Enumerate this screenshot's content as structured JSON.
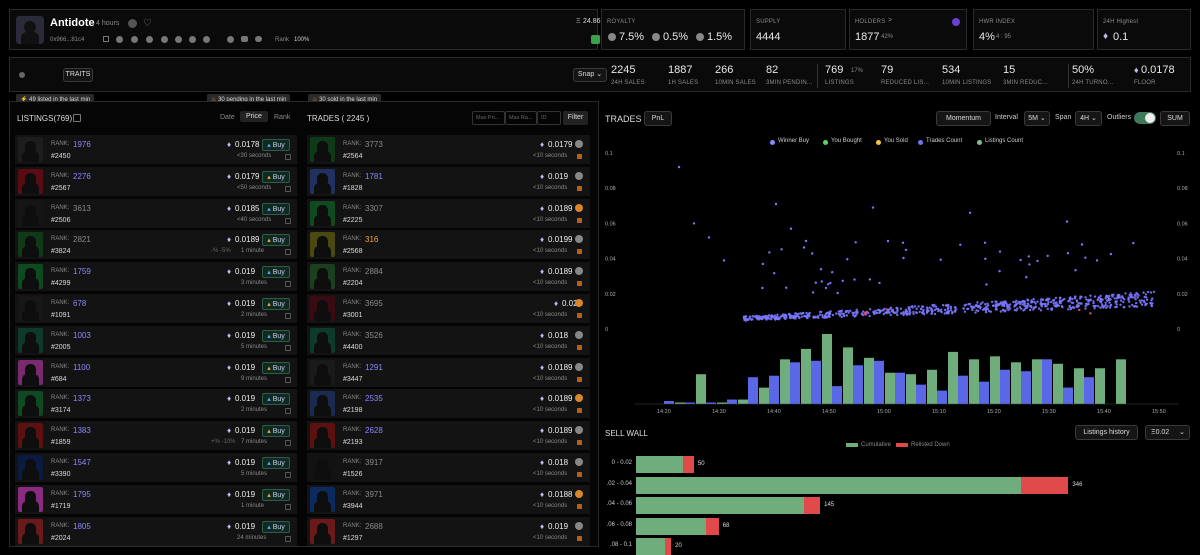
{
  "collection": {
    "name": "Antidote",
    "age": "4 hours",
    "address": "0x966...81c4",
    "rank_label": "Rank",
    "rank_value": "100%",
    "floor_small": "24.86"
  },
  "stats_top": {
    "royalty": {
      "label": "ROYALTY",
      "v1": "7.5%",
      "v2": "0.5%",
      "v3": "1.5%"
    },
    "supply": {
      "label": "SUPPLY",
      "value": "4444"
    },
    "holders": {
      "label": "HOLDERS",
      "value": "1877",
      "pct": "42%"
    },
    "hwr": {
      "label": "HWR INDEX",
      "value": "4%",
      "sub": "4 : 95"
    },
    "high24": {
      "label": "24H Highest",
      "value": "0.1"
    }
  },
  "traits_btn": "TRAITS",
  "snap_select": "Snap",
  "stats_bar": [
    {
      "value": "2245",
      "label": "24H SALES"
    },
    {
      "value": "1887",
      "label": "1H SALES"
    },
    {
      "value": "266",
      "label": "10MIN SALES"
    },
    {
      "value": "82",
      "label": "3MIN PENDIN..."
    },
    {
      "value": "769",
      "sub": "17%",
      "label": "LISTINGS"
    },
    {
      "value": "79",
      "label": "REDUCED LIS..."
    },
    {
      "value": "534",
      "label": "10MIN LISTINGS"
    },
    {
      "value": "15",
      "label": "3MIN REDUC..."
    },
    {
      "value": "50%",
      "label": "24H TURNO..."
    },
    {
      "value": "0.0178",
      "label": "FLOOR"
    }
  ],
  "badges": {
    "listed": "49 listed in the last min",
    "pending": "30 pending in the last min",
    "sold": "30 sold in the last min"
  },
  "listings": {
    "title": "LISTINGS(769)",
    "sort_date": "Date",
    "sort_price": "Price",
    "sort_rank": "Rank",
    "rank_label": "RANK:",
    "buy": "Buy",
    "rows": [
      {
        "rank": "1976",
        "rc": "purple",
        "id": "#2450",
        "price": "0.0178",
        "time": "<30 seconds",
        "bg": "#1d1d1d"
      },
      {
        "rank": "2276",
        "rc": "purple",
        "id": "#2567",
        "price": "0.0179",
        "time": "<50 seconds",
        "bg": "#5a0c14"
      },
      {
        "rank": "3613",
        "rc": "grey",
        "id": "#2506",
        "price": "0.0185",
        "time": "<40 seconds",
        "bg": "#151515"
      },
      {
        "rank": "2821",
        "rc": "grey",
        "id": "#3824",
        "price": "0.0189",
        "time": "1 minute",
        "pre": "-% -5%",
        "bg": "#0f3a18"
      },
      {
        "rank": "1759",
        "rc": "purple",
        "id": "#4299",
        "price": "0.019",
        "time": "3 minutes",
        "bg": "#0e4a20"
      },
      {
        "rank": "678",
        "rc": "purple",
        "id": "#1091",
        "price": "0.019",
        "time": "2 minutes",
        "bg": "#171717"
      },
      {
        "rank": "1003",
        "rc": "purple",
        "id": "#2005",
        "price": "0.019",
        "time": "5 minutes",
        "bg": "#0d3a2a"
      },
      {
        "rank": "1100",
        "rc": "purple",
        "id": "#684",
        "price": "0.019",
        "time": "9 minutes",
        "bg": "#7a2a70"
      },
      {
        "rank": "1373",
        "rc": "purple",
        "id": "#3174",
        "price": "0.019",
        "time": "2 minutes",
        "bg": "#0f4a22"
      },
      {
        "rank": "1383",
        "rc": "purple",
        "id": "#1859",
        "price": "0.019",
        "time": "7 minutes",
        "pre": "+% -10%",
        "bg": "#5c1010"
      },
      {
        "rank": "1547",
        "rc": "purple",
        "id": "#3390",
        "price": "0.019",
        "time": "5 minutes",
        "bg": "#0a1a40"
      },
      {
        "rank": "1795",
        "rc": "purple",
        "id": "#1719",
        "price": "0.019",
        "time": "1 minute",
        "bg": "#8a2a80"
      },
      {
        "rank": "1805",
        "rc": "purple",
        "id": "#2024",
        "price": "0.019",
        "time": "24 minutes",
        "bg": "#6a1a1a"
      }
    ]
  },
  "trades": {
    "title": "TRADES ( 2245 )",
    "f1": "Max Pri...",
    "f2": "Max Ra...",
    "f3": "ID",
    "filter": "Filter",
    "rank_label": "RANK:",
    "rows": [
      {
        "rank": "3773",
        "rc": "grey",
        "id": "#2564",
        "price": "0.0179",
        "time": "<10 seconds",
        "bg": "#0f3a18"
      },
      {
        "rank": "1781",
        "rc": "purple",
        "id": "#1828",
        "price": "0.019",
        "time": "<10 seconds",
        "bg": "#223060"
      },
      {
        "rank": "3307",
        "rc": "grey",
        "id": "#2225",
        "price": "0.0189",
        "time": "<10 seconds",
        "bg": "#0f4a20"
      },
      {
        "rank": "316",
        "rc": "orange",
        "id": "#2568",
        "price": "0.0199",
        "time": "<10 seconds",
        "bg": "#4a4a10"
      },
      {
        "rank": "2884",
        "rc": "grey",
        "id": "#2204",
        "price": "0.0189",
        "time": "<10 seconds",
        "bg": "#1a4020"
      },
      {
        "rank": "3695",
        "rc": "grey",
        "id": "#3001",
        "price": "0.02",
        "time": "<10 seconds",
        "bg": "#3a0a12"
      },
      {
        "rank": "3526",
        "rc": "grey",
        "id": "#4400",
        "price": "0.018",
        "time": "<10 seconds",
        "bg": "#0d3a2a"
      },
      {
        "rank": "1291",
        "rc": "purple",
        "id": "#3447",
        "price": "0.0189",
        "time": "<10 seconds",
        "bg": "#1a1a1a"
      },
      {
        "rank": "2535",
        "rc": "purple",
        "id": "#2198",
        "price": "0.0189",
        "time": "<10 seconds",
        "bg": "#1a2a50"
      },
      {
        "rank": "2628",
        "rc": "purple",
        "id": "#2193",
        "price": "0.0189",
        "time": "<10 seconds",
        "bg": "#5c1010"
      },
      {
        "rank": "3917",
        "rc": "grey",
        "id": "#1526",
        "price": "0.018",
        "time": "<10 seconds",
        "bg": "#121212"
      },
      {
        "rank": "3971",
        "rc": "grey",
        "id": "#3944",
        "price": "0.0188",
        "time": "<10 seconds",
        "bg": "#0a2a60"
      },
      {
        "rank": "2688",
        "rc": "grey",
        "id": "#1297",
        "price": "0.019",
        "time": "<10 seconds",
        "bg": "#6a1a1a"
      }
    ]
  },
  "trades_chart": {
    "title": "TRADES",
    "pnl": "PnL",
    "momentum": "Momentum",
    "interval_label": "Interval",
    "interval": "5M",
    "span_label": "Span",
    "span": "4H",
    "outliers": "Outliers",
    "sum": "SUM",
    "legend": [
      {
        "label": "Winner Buy",
        "color": "#8c88ff"
      },
      {
        "label": "You Bought",
        "color": "#5cd65c"
      },
      {
        "label": "You Sold",
        "color": "#f2c641"
      },
      {
        "label": "Trades Count",
        "color": "#6a78f0"
      },
      {
        "label": "Listings Count",
        "color": "#7fbf8f"
      }
    ]
  },
  "chart_data": {
    "type": "scatter",
    "y_ticks": [
      "0.1",
      "0.08",
      "0.06",
      "0.04",
      "0.02",
      "0"
    ],
    "x_ticks": [
      "14:20",
      "14:30",
      "14:40",
      "14:50",
      "15:00",
      "15:10",
      "15:20",
      "15:30",
      "15:40",
      "15:50"
    ],
    "ylim": [
      0,
      0.1
    ],
    "bars_trades": [
      2,
      1,
      1,
      3,
      18,
      19,
      28,
      29,
      12,
      26,
      29,
      21,
      13,
      9,
      19,
      15,
      23,
      22,
      30,
      11,
      18
    ],
    "bars_listings": [
      1,
      20,
      1,
      3,
      11,
      30,
      37,
      47,
      38,
      31,
      21,
      20,
      23,
      35,
      30,
      32,
      28,
      30,
      27,
      24,
      24,
      30
    ],
    "sample_hi": [
      0.092,
      0.071,
      0.069,
      0.066,
      0.061,
      0.06,
      0.057,
      0.05,
      0.049,
      0.048,
      0.052,
      0.05,
      0.049,
      0.044,
      0.039,
      0.039,
      0.034
    ]
  },
  "sell_wall": {
    "title": "SELL WALL",
    "history": "Listings history",
    "step": "0.02",
    "legend_cum": "Cumulative",
    "legend_rel": "Relisted Down",
    "rows": [
      {
        "label": "0 - 0.02",
        "cum": 56,
        "rel": 11,
        "val": "50"
      },
      {
        "label": ".02 - 0.04",
        "cum": 418,
        "rel": 46,
        "val": "346"
      },
      {
        "label": ".04 - 0.06",
        "cum": 178,
        "rel": 16,
        "val": "145"
      },
      {
        "label": ".06 - 0.08",
        "cum": 80,
        "rel": 12,
        "val": "68"
      },
      {
        "label": ".08 - 0.1",
        "cum": 34,
        "rel": 6,
        "val": "20"
      }
    ]
  }
}
